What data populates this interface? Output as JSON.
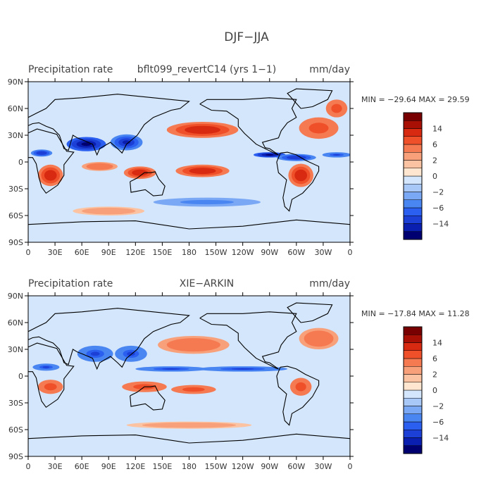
{
  "figure": {
    "title": "DJF−JJA",
    "colors": {
      "levels": [
        "#000070",
        "#0a1fb0",
        "#1c3fd6",
        "#2a5ff0",
        "#4a86f2",
        "#7aa8f5",
        "#a8c8f8",
        "#d4e6fb",
        "#ffe6d0",
        "#fbc3a1",
        "#f8a07a",
        "#f57a52",
        "#ef5029",
        "#d82a10",
        "#a80f05",
        "#780000"
      ],
      "labels": [
        "14",
        "6",
        "2",
        "0",
        "−2",
        "−6",
        "−14"
      ]
    }
  },
  "chart_data": [
    {
      "type": "heatmap",
      "field": "Precipitation rate",
      "title": "bflt099_revertC14 (yrs 1−1)",
      "units": "mm/day",
      "stats": "MIN = −29.64  MAX =  29.59",
      "xticks": [
        "0",
        "30E",
        "60E",
        "90E",
        "120E",
        "150E",
        "180",
        "150W",
        "120W",
        "90W",
        "60W",
        "30W",
        "0"
      ],
      "yticks": [
        "90N",
        "60N",
        "30N",
        "0",
        "30S",
        "60S",
        "90S"
      ],
      "xlim": [
        0,
        360
      ],
      "ylim": [
        -90,
        90
      ],
      "features": [
        {
          "lon": 195,
          "lat": 36,
          "value": 8,
          "rx": 40,
          "ry": 9
        },
        {
          "lon": 325,
          "lat": 38,
          "value": 6,
          "rx": 22,
          "ry": 12
        },
        {
          "lon": 345,
          "lat": 60,
          "value": 6,
          "rx": 12,
          "ry": 10
        },
        {
          "lon": 65,
          "lat": 20,
          "value": -14,
          "rx": 22,
          "ry": 8
        },
        {
          "lon": 110,
          "lat": 22,
          "value": -10,
          "rx": 18,
          "ry": 9
        },
        {
          "lon": 15,
          "lat": 10,
          "value": -8,
          "rx": 12,
          "ry": 4
        },
        {
          "lon": 270,
          "lat": 8,
          "value": -14,
          "rx": 18,
          "ry": 3
        },
        {
          "lon": 300,
          "lat": 5,
          "value": -8,
          "rx": 22,
          "ry": 4
        },
        {
          "lon": 345,
          "lat": 8,
          "value": -6,
          "rx": 16,
          "ry": 3
        },
        {
          "lon": 25,
          "lat": -15,
          "value": 10,
          "rx": 14,
          "ry": 12
        },
        {
          "lon": 125,
          "lat": -12,
          "value": 10,
          "rx": 18,
          "ry": 7
        },
        {
          "lon": 195,
          "lat": -10,
          "value": 10,
          "rx": 30,
          "ry": 7
        },
        {
          "lon": 305,
          "lat": -15,
          "value": 10,
          "rx": 14,
          "ry": 13
        },
        {
          "lon": 80,
          "lat": -5,
          "value": 4,
          "rx": 20,
          "ry": 5
        },
        {
          "lon": 200,
          "lat": -45,
          "value": -3,
          "rx": 60,
          "ry": 5
        },
        {
          "lon": 90,
          "lat": -55,
          "value": 2,
          "rx": 40,
          "ry": 5
        }
      ]
    },
    {
      "type": "heatmap",
      "field": "Precipitation rate",
      "title": "XIE−ARKIN",
      "units": "mm/day",
      "stats": "MIN = −17.84  MAX =  11.28",
      "xticks": [
        "0",
        "30E",
        "60E",
        "90E",
        "120E",
        "150E",
        "180",
        "150W",
        "120W",
        "90W",
        "60W",
        "30W",
        "0"
      ],
      "yticks": [
        "90N",
        "60N",
        "30N",
        "0",
        "30S",
        "60S",
        "90S"
      ],
      "xlim": [
        0,
        360
      ],
      "ylim": [
        -90,
        90
      ],
      "features": [
        {
          "lon": 185,
          "lat": 35,
          "value": 4,
          "rx": 40,
          "ry": 10
        },
        {
          "lon": 325,
          "lat": 42,
          "value": 4,
          "rx": 22,
          "ry": 12
        },
        {
          "lon": 75,
          "lat": 25,
          "value": -6,
          "rx": 20,
          "ry": 9
        },
        {
          "lon": 115,
          "lat": 25,
          "value": -6,
          "rx": 18,
          "ry": 9
        },
        {
          "lon": 20,
          "lat": 10,
          "value": -6,
          "rx": 15,
          "ry": 4
        },
        {
          "lon": 160,
          "lat": 8,
          "value": -6,
          "rx": 40,
          "ry": 3
        },
        {
          "lon": 240,
          "lat": 8,
          "value": -6,
          "rx": 50,
          "ry": 3
        },
        {
          "lon": 25,
          "lat": -12,
          "value": 6,
          "rx": 14,
          "ry": 8
        },
        {
          "lon": 130,
          "lat": -12,
          "value": 6,
          "rx": 25,
          "ry": 6
        },
        {
          "lon": 185,
          "lat": -15,
          "value": 6,
          "rx": 25,
          "ry": 5
        },
        {
          "lon": 305,
          "lat": -12,
          "value": 6,
          "rx": 12,
          "ry": 10
        },
        {
          "lon": 180,
          "lat": -55,
          "value": 2,
          "rx": 70,
          "ry": 4
        }
      ]
    }
  ]
}
